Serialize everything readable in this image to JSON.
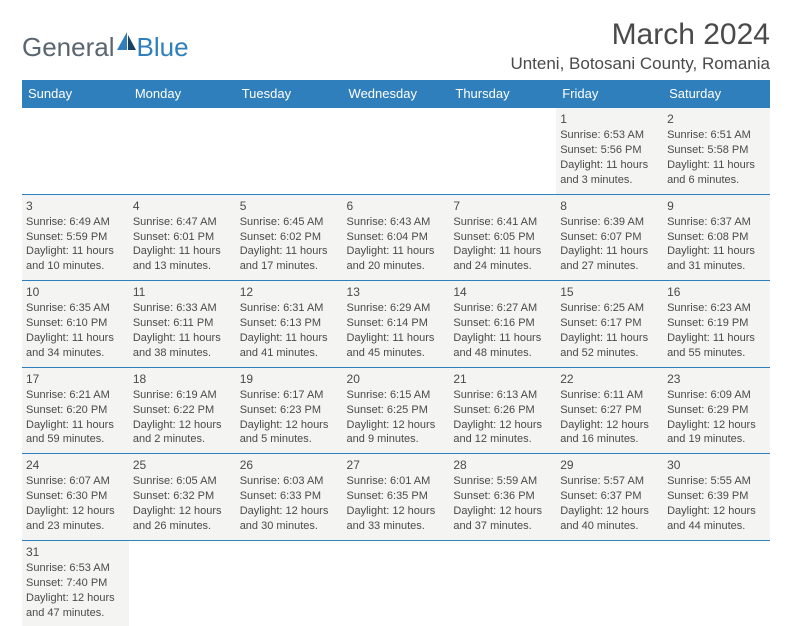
{
  "logo": {
    "word1": "General",
    "word2": "Blue"
  },
  "header": {
    "title": "March 2024",
    "location": "Unteni, Botosani County, Romania"
  },
  "style": {
    "header_bg": "#2f7fbc",
    "header_fg": "#ffffff",
    "cell_bg": "#f4f4f2",
    "border_color": "#2f7fbc",
    "text_color": "#4a4a4a",
    "font_size_cell": 11,
    "font_size_header": 13,
    "font_size_title": 30,
    "font_size_location": 17
  },
  "days_of_week": [
    "Sunday",
    "Monday",
    "Tuesday",
    "Wednesday",
    "Thursday",
    "Friday",
    "Saturday"
  ],
  "weeks": [
    [
      null,
      null,
      null,
      null,
      null,
      {
        "n": "1",
        "sr": "Sunrise: 6:53 AM",
        "ss": "Sunset: 5:56 PM",
        "dl": "Daylight: 11 hours and 3 minutes."
      },
      {
        "n": "2",
        "sr": "Sunrise: 6:51 AM",
        "ss": "Sunset: 5:58 PM",
        "dl": "Daylight: 11 hours and 6 minutes."
      }
    ],
    [
      {
        "n": "3",
        "sr": "Sunrise: 6:49 AM",
        "ss": "Sunset: 5:59 PM",
        "dl": "Daylight: 11 hours and 10 minutes."
      },
      {
        "n": "4",
        "sr": "Sunrise: 6:47 AM",
        "ss": "Sunset: 6:01 PM",
        "dl": "Daylight: 11 hours and 13 minutes."
      },
      {
        "n": "5",
        "sr": "Sunrise: 6:45 AM",
        "ss": "Sunset: 6:02 PM",
        "dl": "Daylight: 11 hours and 17 minutes."
      },
      {
        "n": "6",
        "sr": "Sunrise: 6:43 AM",
        "ss": "Sunset: 6:04 PM",
        "dl": "Daylight: 11 hours and 20 minutes."
      },
      {
        "n": "7",
        "sr": "Sunrise: 6:41 AM",
        "ss": "Sunset: 6:05 PM",
        "dl": "Daylight: 11 hours and 24 minutes."
      },
      {
        "n": "8",
        "sr": "Sunrise: 6:39 AM",
        "ss": "Sunset: 6:07 PM",
        "dl": "Daylight: 11 hours and 27 minutes."
      },
      {
        "n": "9",
        "sr": "Sunrise: 6:37 AM",
        "ss": "Sunset: 6:08 PM",
        "dl": "Daylight: 11 hours and 31 minutes."
      }
    ],
    [
      {
        "n": "10",
        "sr": "Sunrise: 6:35 AM",
        "ss": "Sunset: 6:10 PM",
        "dl": "Daylight: 11 hours and 34 minutes."
      },
      {
        "n": "11",
        "sr": "Sunrise: 6:33 AM",
        "ss": "Sunset: 6:11 PM",
        "dl": "Daylight: 11 hours and 38 minutes."
      },
      {
        "n": "12",
        "sr": "Sunrise: 6:31 AM",
        "ss": "Sunset: 6:13 PM",
        "dl": "Daylight: 11 hours and 41 minutes."
      },
      {
        "n": "13",
        "sr": "Sunrise: 6:29 AM",
        "ss": "Sunset: 6:14 PM",
        "dl": "Daylight: 11 hours and 45 minutes."
      },
      {
        "n": "14",
        "sr": "Sunrise: 6:27 AM",
        "ss": "Sunset: 6:16 PM",
        "dl": "Daylight: 11 hours and 48 minutes."
      },
      {
        "n": "15",
        "sr": "Sunrise: 6:25 AM",
        "ss": "Sunset: 6:17 PM",
        "dl": "Daylight: 11 hours and 52 minutes."
      },
      {
        "n": "16",
        "sr": "Sunrise: 6:23 AM",
        "ss": "Sunset: 6:19 PM",
        "dl": "Daylight: 11 hours and 55 minutes."
      }
    ],
    [
      {
        "n": "17",
        "sr": "Sunrise: 6:21 AM",
        "ss": "Sunset: 6:20 PM",
        "dl": "Daylight: 11 hours and 59 minutes."
      },
      {
        "n": "18",
        "sr": "Sunrise: 6:19 AM",
        "ss": "Sunset: 6:22 PM",
        "dl": "Daylight: 12 hours and 2 minutes."
      },
      {
        "n": "19",
        "sr": "Sunrise: 6:17 AM",
        "ss": "Sunset: 6:23 PM",
        "dl": "Daylight: 12 hours and 5 minutes."
      },
      {
        "n": "20",
        "sr": "Sunrise: 6:15 AM",
        "ss": "Sunset: 6:25 PM",
        "dl": "Daylight: 12 hours and 9 minutes."
      },
      {
        "n": "21",
        "sr": "Sunrise: 6:13 AM",
        "ss": "Sunset: 6:26 PM",
        "dl": "Daylight: 12 hours and 12 minutes."
      },
      {
        "n": "22",
        "sr": "Sunrise: 6:11 AM",
        "ss": "Sunset: 6:27 PM",
        "dl": "Daylight: 12 hours and 16 minutes."
      },
      {
        "n": "23",
        "sr": "Sunrise: 6:09 AM",
        "ss": "Sunset: 6:29 PM",
        "dl": "Daylight: 12 hours and 19 minutes."
      }
    ],
    [
      {
        "n": "24",
        "sr": "Sunrise: 6:07 AM",
        "ss": "Sunset: 6:30 PM",
        "dl": "Daylight: 12 hours and 23 minutes."
      },
      {
        "n": "25",
        "sr": "Sunrise: 6:05 AM",
        "ss": "Sunset: 6:32 PM",
        "dl": "Daylight: 12 hours and 26 minutes."
      },
      {
        "n": "26",
        "sr": "Sunrise: 6:03 AM",
        "ss": "Sunset: 6:33 PM",
        "dl": "Daylight: 12 hours and 30 minutes."
      },
      {
        "n": "27",
        "sr": "Sunrise: 6:01 AM",
        "ss": "Sunset: 6:35 PM",
        "dl": "Daylight: 12 hours and 33 minutes."
      },
      {
        "n": "28",
        "sr": "Sunrise: 5:59 AM",
        "ss": "Sunset: 6:36 PM",
        "dl": "Daylight: 12 hours and 37 minutes."
      },
      {
        "n": "29",
        "sr": "Sunrise: 5:57 AM",
        "ss": "Sunset: 6:37 PM",
        "dl": "Daylight: 12 hours and 40 minutes."
      },
      {
        "n": "30",
        "sr": "Sunrise: 5:55 AM",
        "ss": "Sunset: 6:39 PM",
        "dl": "Daylight: 12 hours and 44 minutes."
      }
    ],
    [
      {
        "n": "31",
        "sr": "Sunrise: 6:53 AM",
        "ss": "Sunset: 7:40 PM",
        "dl": "Daylight: 12 hours and 47 minutes."
      },
      null,
      null,
      null,
      null,
      null,
      null
    ]
  ]
}
